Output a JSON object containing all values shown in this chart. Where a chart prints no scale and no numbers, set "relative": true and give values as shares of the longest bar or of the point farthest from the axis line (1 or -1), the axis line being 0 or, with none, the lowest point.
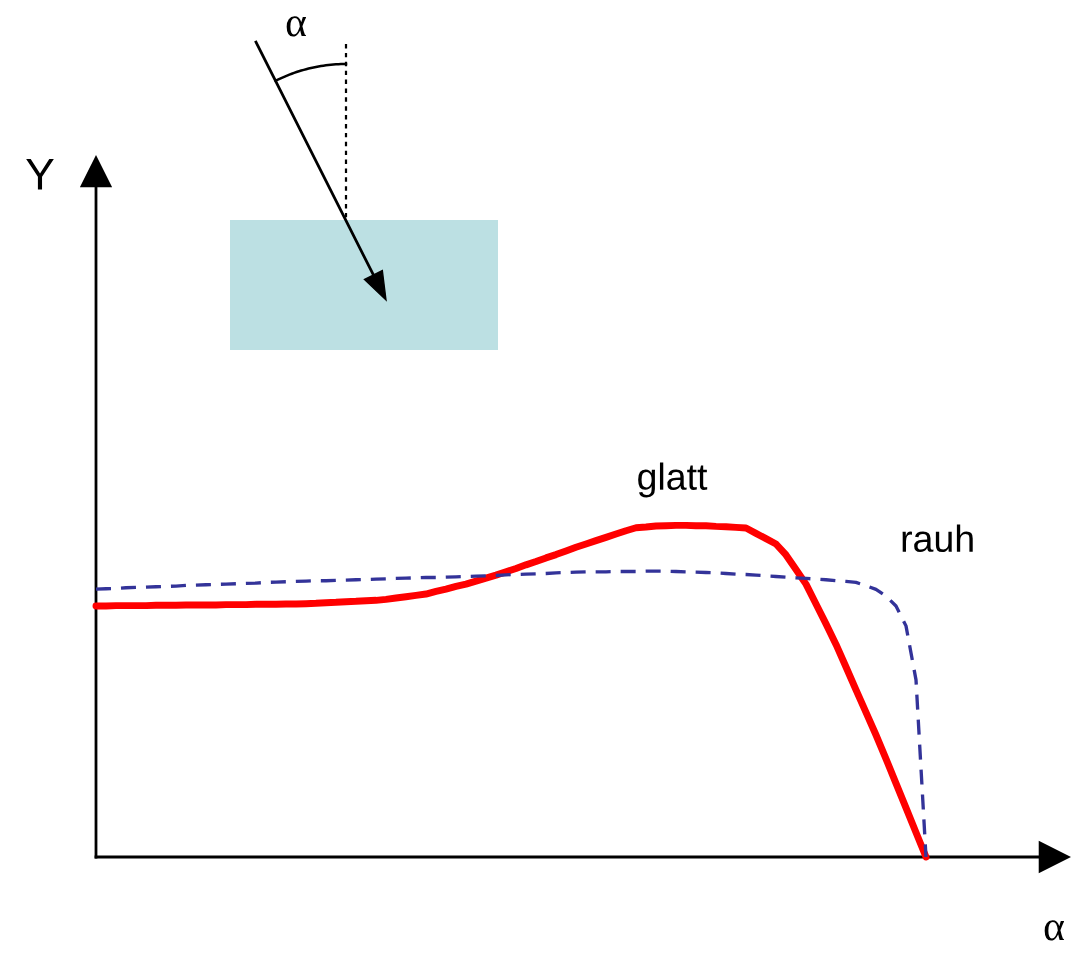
{
  "chart_data": {
    "type": "line",
    "xlabel": "α",
    "annotations": [
      "α",
      "Y"
    ],
    "relative": true,
    "marker": "none",
    "categories": [
      null,
      null,
      null,
      null,
      null,
      null,
      null,
      null,
      null,
      null,
      null,
      null,
      null,
      null,
      null,
      null,
      null,
      null,
      null,
      null,
      null,
      null,
      null,
      null,
      null,
      null,
      null,
      null,
      null,
      null,
      null,
      null,
      null,
      null,
      null,
      null,
      null,
      null,
      null,
      null,
      null,
      null,
      null,
      null,
      null,
      null,
      null,
      null,
      null,
      null,
      null,
      null,
      null,
      null,
      null,
      null,
      null,
      null,
      null,
      null,
      null,
      null,
      null,
      null,
      null,
      null,
      null,
      null,
      null,
      null,
      null,
      null,
      null,
      null,
      null,
      null,
      null,
      null,
      null,
      null,
      null,
      null,
      null,
      null
    ],
    "series": [
      {
        "name": "glatt",
        "color": "#ff0000",
        "line_style": "solid",
        "values": [
          0.757,
          0.757,
          0.758,
          0.758,
          0.758,
          0.758,
          0.759,
          0.759,
          0.759,
          0.76,
          0.76,
          0.76,
          0.76,
          0.761,
          0.761,
          0.761,
          0.762,
          0.762,
          0.762,
          0.763,
          0.763,
          0.764,
          0.765,
          0.767,
          0.768,
          0.77,
          0.771,
          0.773,
          0.774,
          0.777,
          0.781,
          0.785,
          0.789,
          0.793,
          0.801,
          0.808,
          0.816,
          0.823,
          0.832,
          0.841,
          0.85,
          0.86,
          0.87,
          0.881,
          0.891,
          0.902,
          0.912,
          0.923,
          0.934,
          0.944,
          0.954,
          0.964,
          0.974,
          0.984,
          0.993,
          0.995,
          0.998,
          0.999,
          1.0,
          1.0,
          0.999,
          0.999,
          0.997,
          0.996,
          0.994,
          0.992,
          0.976,
          0.96,
          0.944,
          0.911,
          0.867,
          0.823,
          0.763,
          0.703,
          0.641,
          0.573,
          0.504,
          0.436,
          0.368,
          0.296,
          0.222,
          0.148,
          0.074,
          0
        ]
      },
      {
        "name": "rauh",
        "color": "#333399",
        "line_style": "dashed",
        "values": [
          0.808,
          0.809,
          0.81,
          0.812,
          0.813,
          0.814,
          0.815,
          0.816,
          0.817,
          0.819,
          0.82,
          0.821,
          0.822,
          0.823,
          0.824,
          0.825,
          0.826,
          0.828,
          0.829,
          0.83,
          0.831,
          0.832,
          0.833,
          0.833,
          0.834,
          0.835,
          0.836,
          0.837,
          0.838,
          0.839,
          0.84,
          0.841,
          0.842,
          0.843,
          0.843,
          0.844,
          0.845,
          0.846,
          0.847,
          0.848,
          0.849,
          0.851,
          0.852,
          0.853,
          0.854,
          0.855,
          0.857,
          0.858,
          0.859,
          0.86,
          0.86,
          0.86,
          0.861,
          0.861,
          0.861,
          0.862,
          0.862,
          0.862,
          0.861,
          0.86,
          0.859,
          0.858,
          0.857,
          0.855,
          0.853,
          0.852,
          0.85,
          0.848,
          0.846,
          0.844,
          0.842,
          0.84,
          0.838,
          0.836,
          0.833,
          0.831,
          0.828,
          0.818,
          0.807,
          0.787,
          0.757,
          0.697,
          0.534,
          0
        ]
      }
    ]
  }
}
